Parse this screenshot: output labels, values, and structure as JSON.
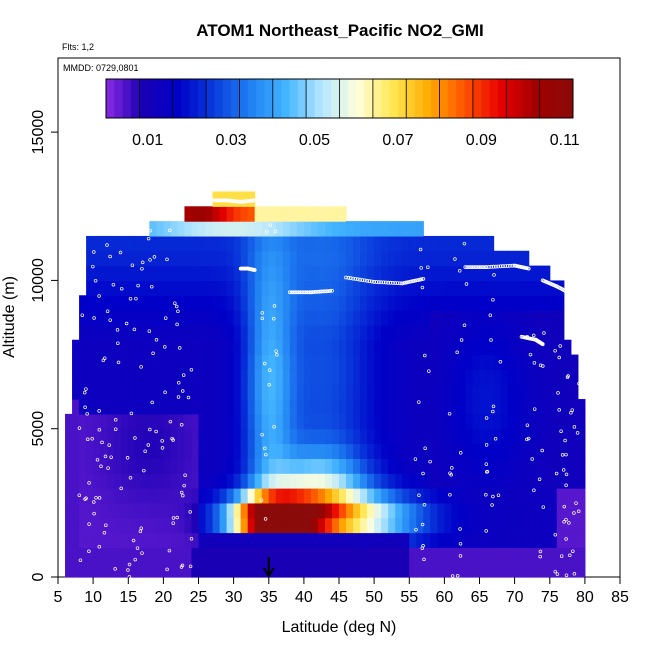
{
  "chart_data": {
    "type": "heatmap",
    "title": "ATOM1 Northeast_Pacific NO2_GMI",
    "flights_label": "Flts: 1,2",
    "dates_label": "MMDD: 0729,0801",
    "xlabel": "Latitude (deg N)",
    "ylabel": "Altitude (m)",
    "xlim": [
      5,
      85
    ],
    "ylim": [
      0,
      17500
    ],
    "x_ticks": [
      "5",
      "10",
      "15",
      "20",
      "25",
      "30",
      "35",
      "40",
      "45",
      "50",
      "55",
      "60",
      "65",
      "70",
      "75",
      "80",
      "85"
    ],
    "y_ticks": [
      "0",
      "5000",
      "10000",
      "15000"
    ],
    "colorbar": {
      "min": 0.0,
      "max": 0.112,
      "tick_labels": [
        "0.01",
        "0.03",
        "0.05",
        "0.07",
        "0.09",
        "0.11"
      ],
      "tick_values": [
        0.01,
        0.03,
        0.05,
        0.07,
        0.09,
        0.11
      ],
      "colors": [
        "#8a2be2",
        "#1a00b4",
        "#0000c8",
        "#0a3cdc",
        "#1f7ff2",
        "#43b4ff",
        "#b4e6ff",
        "#ffffdc",
        "#ffe650",
        "#ffaa00",
        "#ff5000",
        "#e60000",
        "#a00000",
        "#8b0a0a"
      ]
    },
    "field_grid": {
      "lat_step": 1,
      "alt_step": 500,
      "lat_range": [
        6,
        80
      ],
      "alt_range": [
        0,
        13000
      ]
    },
    "flight_tracks": [
      {
        "name": "upper_track_1",
        "lat": [
          27,
          29,
          31,
          33
        ],
        "alt": [
          12700,
          12700,
          12650,
          12700
        ]
      },
      {
        "name": "upper_track_2",
        "lat": [
          31,
          32,
          33
        ],
        "alt": [
          10400,
          10400,
          10350
        ]
      },
      {
        "name": "upper_track_3",
        "lat": [
          38,
          41,
          44
        ],
        "alt": [
          9600,
          9600,
          9650
        ]
      },
      {
        "name": "upper_track_4",
        "lat": [
          46,
          50,
          54,
          57
        ],
        "alt": [
          10100,
          9950,
          9900,
          10050
        ]
      },
      {
        "name": "upper_track_5",
        "lat": [
          63,
          66,
          70,
          72
        ],
        "alt": [
          10450,
          10450,
          10500,
          10400
        ]
      },
      {
        "name": "upper_track_6",
        "lat": [
          74,
          76,
          78
        ],
        "alt": [
          10000,
          9800,
          9550
        ]
      },
      {
        "name": "upper_track_7",
        "lat": [
          71,
          73,
          74
        ],
        "alt": [
          8100,
          8000,
          7850
        ]
      }
    ],
    "marker": {
      "lat": 35,
      "label": "arrow"
    }
  }
}
